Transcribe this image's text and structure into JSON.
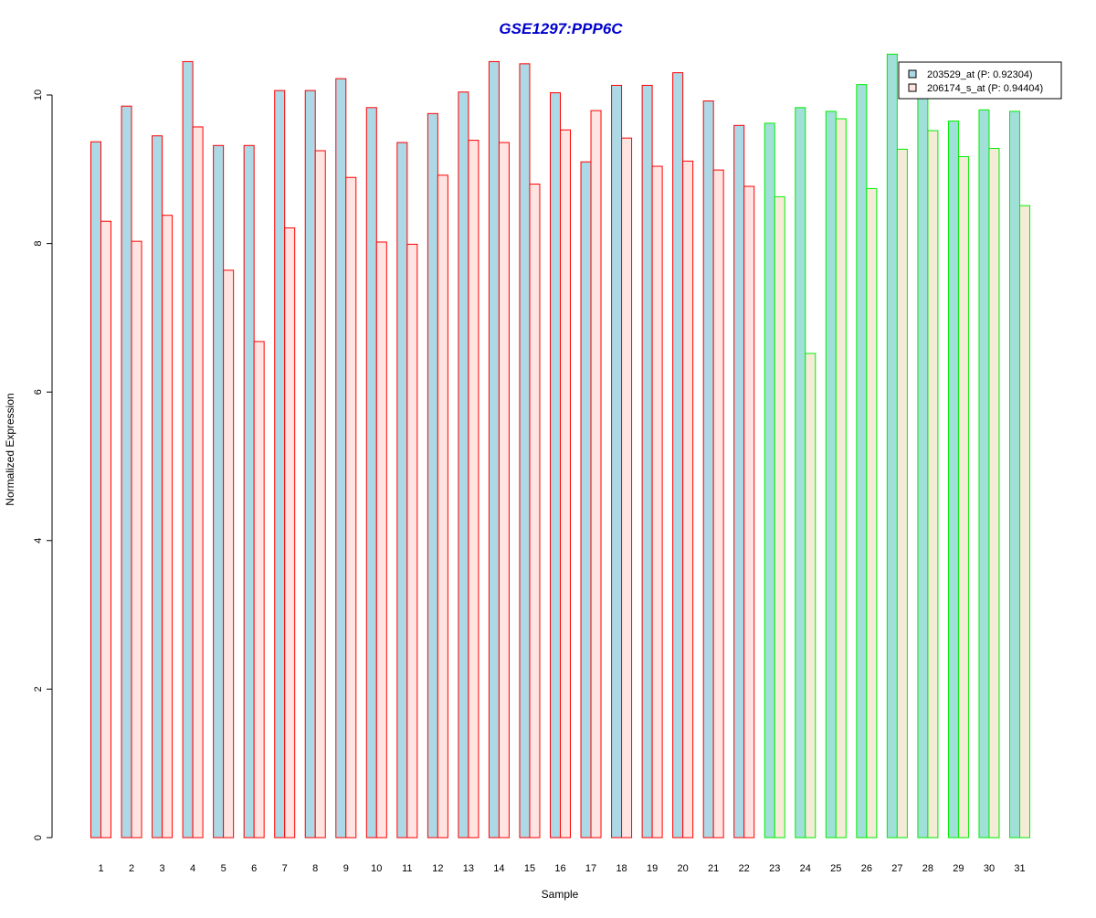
{
  "chart_data": {
    "type": "bar",
    "title": "GSE1297:PPP6C",
    "xlabel": "Sample",
    "ylabel": "Normalized Expression",
    "ylim": [
      0,
      10.5
    ],
    "yticks": [
      0,
      2,
      4,
      6,
      8,
      10
    ],
    "grid": false,
    "legend_position": "top-right",
    "categories": [
      "1",
      "2",
      "3",
      "4",
      "5",
      "6",
      "7",
      "8",
      "9",
      "10",
      "11",
      "12",
      "13",
      "14",
      "15",
      "16",
      "17",
      "18",
      "19",
      "20",
      "21",
      "22",
      "23",
      "24",
      "25",
      "26",
      "27",
      "28",
      "29",
      "30",
      "31"
    ],
    "group_split_index": 22,
    "series": [
      {
        "name": "203529_at (P: 0.92304)",
        "values": [
          9.37,
          9.85,
          9.45,
          10.45,
          9.32,
          9.32,
          10.06,
          10.06,
          10.22,
          9.83,
          9.36,
          9.75,
          10.04,
          10.45,
          10.42,
          10.03,
          9.1,
          10.13,
          10.13,
          10.3,
          9.92,
          9.59,
          9.62,
          9.83,
          9.78,
          10.14,
          10.55,
          10.0,
          9.65,
          9.8,
          9.78
        ],
        "fill": "#add8e6"
      },
      {
        "name": "206174_s_at (P: 0.94404)",
        "values": [
          8.3,
          8.03,
          8.38,
          9.57,
          7.64,
          6.68,
          8.21,
          9.25,
          8.89,
          8.02,
          7.99,
          8.92,
          9.39,
          9.36,
          8.8,
          9.53,
          9.79,
          9.42,
          9.04,
          9.11,
          8.99,
          8.77,
          8.63,
          6.52,
          9.68,
          8.74,
          9.27,
          9.52,
          9.17,
          9.28,
          8.51
        ],
        "fill": "#ffe4e1"
      }
    ],
    "group_fill_overrides": {
      "group2_series1_fill": "#a0e0d8",
      "group2_series2_fill": "#f5ecd8"
    },
    "border_colors": {
      "group1": "#ff0000",
      "group2": "#00ee00"
    },
    "colors": {
      "title": "#0000cc",
      "axis": "#000000",
      "legend_border": "#000000"
    }
  }
}
